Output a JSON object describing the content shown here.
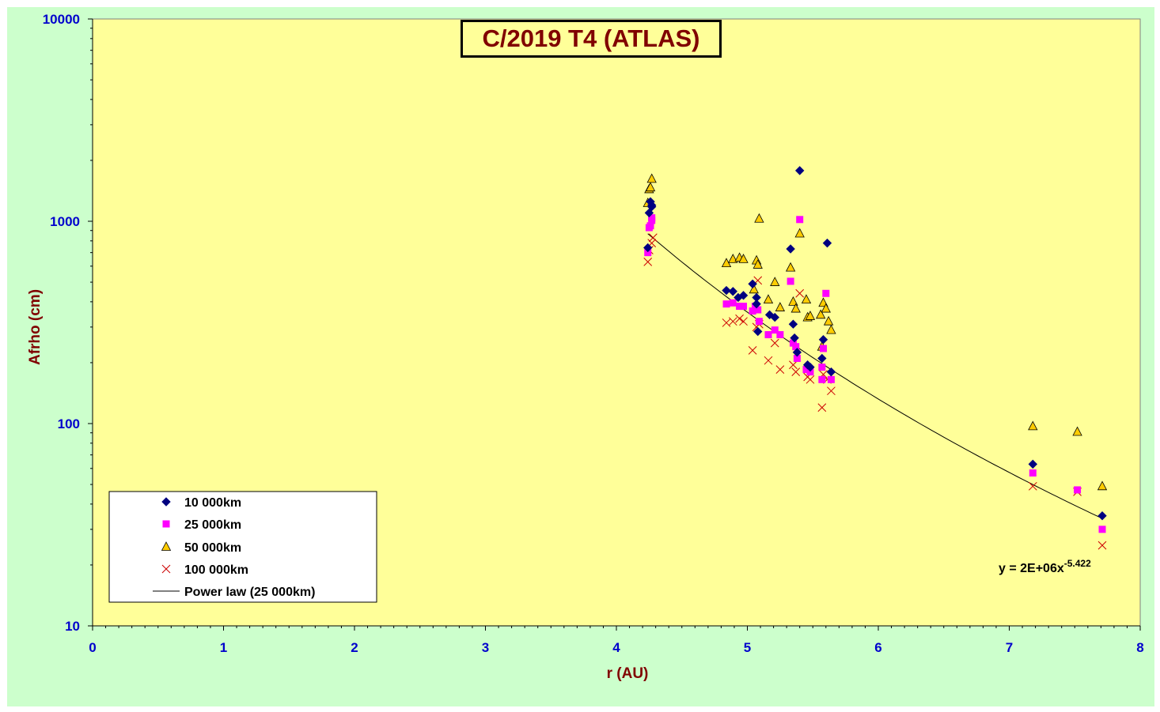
{
  "chart_data": {
    "type": "scatter",
    "title": "C/2019 T4 (ATLAS)",
    "xlabel": "r (AU)",
    "ylabel": "Afrho (cm)",
    "xlim": [
      0,
      8
    ],
    "ylim": [
      10,
      10000
    ],
    "yscale": "log",
    "x_ticks": [
      "0",
      "1",
      "2",
      "3",
      "4",
      "5",
      "6",
      "7",
      "8"
    ],
    "y_ticks": [
      "10",
      "100",
      "1000",
      "10000"
    ],
    "grid": false,
    "legend_position": "bottom-left",
    "colors": {
      "plot_bg": "#ffff99",
      "chart_bg": "#ccffcc",
      "tick_label": "#0000cc",
      "axis_title": "#800000"
    },
    "series": [
      {
        "name": "10 000km",
        "marker": "diamond",
        "color": "#000080",
        "points": [
          [
            4.24,
            740
          ],
          [
            4.25,
            1100
          ],
          [
            4.26,
            1250
          ],
          [
            4.27,
            1180
          ],
          [
            4.27,
            1200
          ],
          [
            4.84,
            455
          ],
          [
            4.89,
            450
          ],
          [
            4.93,
            420
          ],
          [
            4.97,
            430
          ],
          [
            5.04,
            490
          ],
          [
            5.07,
            420
          ],
          [
            5.07,
            390
          ],
          [
            5.08,
            285
          ],
          [
            5.17,
            345
          ],
          [
            5.21,
            335
          ],
          [
            5.33,
            730
          ],
          [
            5.35,
            310
          ],
          [
            5.36,
            265
          ],
          [
            5.38,
            225
          ],
          [
            5.4,
            1780
          ],
          [
            5.46,
            195
          ],
          [
            5.48,
            190
          ],
          [
            5.57,
            210
          ],
          [
            5.58,
            260
          ],
          [
            5.61,
            780
          ],
          [
            5.64,
            180
          ],
          [
            7.18,
            63
          ],
          [
            7.71,
            35
          ]
        ]
      },
      {
        "name": "25 000km",
        "marker": "square",
        "color": "#ff00ff",
        "points": [
          [
            4.24,
            700
          ],
          [
            4.25,
            930
          ],
          [
            4.26,
            950
          ],
          [
            4.27,
            1010
          ],
          [
            4.27,
            1040
          ],
          [
            4.84,
            390
          ],
          [
            4.89,
            395
          ],
          [
            4.94,
            380
          ],
          [
            4.97,
            380
          ],
          [
            5.04,
            360
          ],
          [
            5.06,
            380
          ],
          [
            5.08,
            365
          ],
          [
            5.09,
            320
          ],
          [
            5.16,
            275
          ],
          [
            5.21,
            290
          ],
          [
            5.25,
            275
          ],
          [
            5.33,
            505
          ],
          [
            5.35,
            250
          ],
          [
            5.37,
            240
          ],
          [
            5.38,
            210
          ],
          [
            5.4,
            1020
          ],
          [
            5.45,
            185
          ],
          [
            5.48,
            180
          ],
          [
            5.57,
            190
          ],
          [
            5.58,
            235
          ],
          [
            5.6,
            440
          ],
          [
            5.57,
            165
          ],
          [
            5.64,
            165
          ],
          [
            7.18,
            57
          ],
          [
            7.52,
            47
          ],
          [
            7.71,
            30
          ]
        ]
      },
      {
        "name": "50 000km",
        "marker": "triangle",
        "color": "#ffcc00",
        "points": [
          [
            4.24,
            1230
          ],
          [
            4.25,
            1440
          ],
          [
            4.26,
            1470
          ],
          [
            4.27,
            1620
          ],
          [
            4.84,
            620
          ],
          [
            4.89,
            650
          ],
          [
            4.94,
            660
          ],
          [
            4.97,
            650
          ],
          [
            5.05,
            460
          ],
          [
            5.07,
            640
          ],
          [
            5.08,
            610
          ],
          [
            5.09,
            1030
          ],
          [
            5.16,
            410
          ],
          [
            5.21,
            500
          ],
          [
            5.25,
            375
          ],
          [
            5.33,
            590
          ],
          [
            5.35,
            400
          ],
          [
            5.37,
            370
          ],
          [
            5.4,
            870
          ],
          [
            5.45,
            410
          ],
          [
            5.46,
            335
          ],
          [
            5.48,
            340
          ],
          [
            5.56,
            345
          ],
          [
            5.57,
            240
          ],
          [
            5.58,
            395
          ],
          [
            5.6,
            370
          ],
          [
            5.62,
            320
          ],
          [
            5.64,
            290
          ],
          [
            7.18,
            97
          ],
          [
            7.52,
            91
          ],
          [
            7.71,
            49
          ]
        ]
      },
      {
        "name": "100 000km",
        "marker": "x",
        "color": "#cc0000",
        "points": [
          [
            4.24,
            630
          ],
          [
            4.25,
            720
          ],
          [
            4.27,
            780
          ],
          [
            4.28,
            830
          ],
          [
            4.84,
            315
          ],
          [
            4.89,
            320
          ],
          [
            4.94,
            330
          ],
          [
            4.97,
            320
          ],
          [
            5.04,
            230
          ],
          [
            5.07,
            300
          ],
          [
            5.08,
            510
          ],
          [
            5.09,
            310
          ],
          [
            5.16,
            205
          ],
          [
            5.21,
            250
          ],
          [
            5.25,
            185
          ],
          [
            5.35,
            195
          ],
          [
            5.37,
            180
          ],
          [
            5.4,
            440
          ],
          [
            5.46,
            170
          ],
          [
            5.48,
            165
          ],
          [
            5.57,
            120
          ],
          [
            5.58,
            175
          ],
          [
            5.61,
            165
          ],
          [
            5.64,
            145
          ],
          [
            7.18,
            49
          ],
          [
            7.52,
            46
          ],
          [
            7.71,
            25
          ]
        ]
      }
    ],
    "trendline": {
      "name": "Power law (25 000km)",
      "type": "power",
      "coefficient": 2190000,
      "exponent": -5.422,
      "x_range": [
        4.24,
        7.71
      ],
      "color": "#000000"
    },
    "equation": {
      "base": "y = 2E+06x",
      "exponent": "-5.422"
    }
  }
}
